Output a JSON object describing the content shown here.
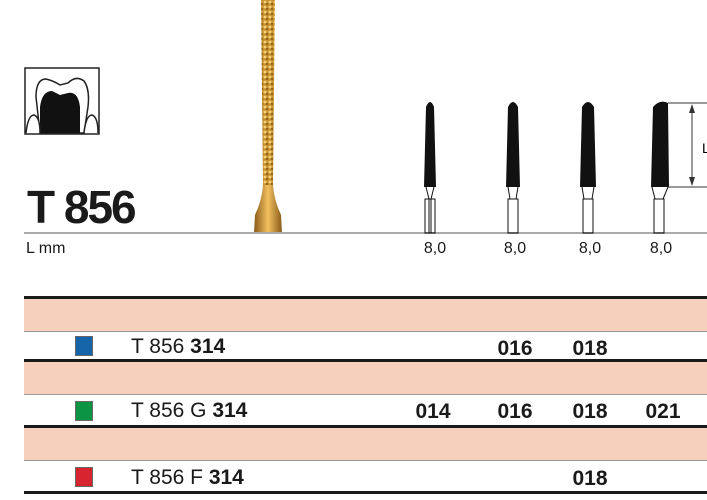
{
  "product": {
    "title": "T 856",
    "length_label": "L mm",
    "dimension_label": "L",
    "lengths": [
      "8,0",
      "8,0",
      "8,0",
      "8,0"
    ]
  },
  "rows": [
    {
      "prefix": "T 856 ",
      "code": "314",
      "color": "#1565a8",
      "sizes": [
        "",
        "016",
        "018",
        ""
      ]
    },
    {
      "prefix": "T 856 G ",
      "code": "314",
      "color": "#0a9444",
      "sizes": [
        "014",
        "016",
        "018",
        "021"
      ]
    },
    {
      "prefix": "T 856 F ",
      "code": "314",
      "color": "#d7242e",
      "sizes": [
        "",
        "",
        "018",
        ""
      ]
    }
  ],
  "icons": {
    "application": "tooth-crown-preparation-icon",
    "product_image": "diamond-bur-image"
  }
}
